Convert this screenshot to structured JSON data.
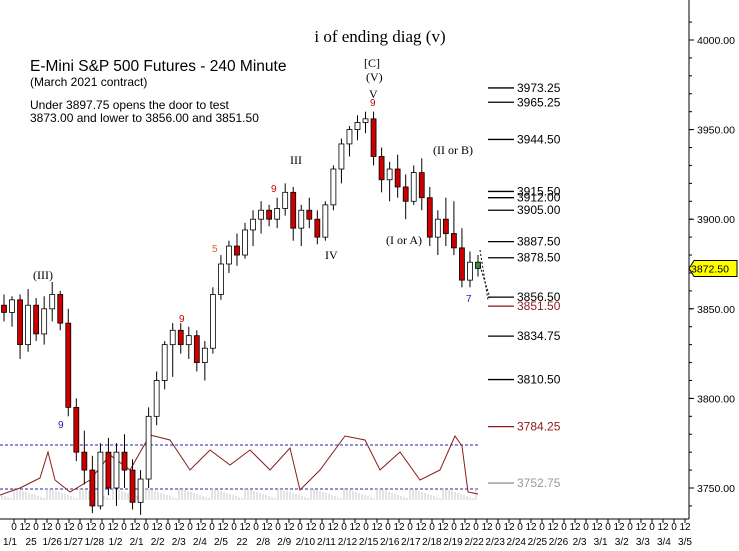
{
  "chart_data": {
    "type": "candlestick",
    "title": "E-Mini S&P 500 Futures - 240 Minute",
    "subtitle": "(March 2021 contract)",
    "note_lines": [
      "Under 3897.75 opens the door to test",
      "3873.00 and lower to 3856.00 and 3851.50"
    ],
    "header_label": "i of ending diag (v)",
    "y_axis": {
      "ticks": [
        3750.0,
        3800.0,
        3850.0,
        3900.0,
        3950.0,
        4000.0
      ],
      "range": [
        3735,
        4020
      ],
      "last_price": "3872.50",
      "last_price_value": 3872.5
    },
    "x_axis": {
      "tick_labels": [
        "0",
        "12",
        "0",
        "12",
        "0",
        "12",
        "0",
        "12",
        "0",
        "12",
        "0",
        "12",
        "0",
        "12",
        "0",
        "12",
        "0",
        "12",
        "0",
        "12",
        "0",
        "12",
        "0",
        "12",
        "0",
        "12",
        "0",
        "12",
        "0",
        "12",
        "0",
        "12",
        "0",
        "12",
        "0",
        "12",
        "0",
        "12",
        "0",
        "12",
        "0",
        "12",
        "0",
        "12",
        "0",
        "12",
        "0",
        "12",
        "0",
        "12",
        "0",
        "12",
        "0",
        "12",
        "0",
        "12",
        "0",
        "12",
        "0",
        "12",
        "0",
        "12"
      ],
      "date_labels": [
        "1/1",
        "25",
        "1/26",
        "1/27",
        "1/28",
        "1/2",
        "2/1",
        "2/2",
        "2/3",
        "2/4",
        "2/5",
        "22",
        "2/8",
        "2/9",
        "2/10",
        "2/11",
        "2/12",
        "2/15",
        "2/16",
        "2/17",
        "2/18",
        "2/19",
        "2/22",
        "2/23",
        "2/24",
        "2/25",
        "2/26",
        "2/3",
        "3/1",
        "3/2",
        "3/3",
        "3/4",
        "3/5"
      ]
    },
    "target_levels": [
      {
        "label": "3973.25",
        "value": 3973.25,
        "color": "#000000"
      },
      {
        "label": "3965.25",
        "value": 3965.25,
        "color": "#000000"
      },
      {
        "label": "3944.50",
        "value": 3944.5,
        "color": "#000000"
      },
      {
        "label": "3915.50",
        "value": 3915.5,
        "color": "#000000"
      },
      {
        "label": "3912.00",
        "value": 3912.0,
        "color": "#000000"
      },
      {
        "label": "3905.00",
        "value": 3905.0,
        "color": "#000000"
      },
      {
        "label": "3887.50",
        "value": 3887.5,
        "color": "#000000"
      },
      {
        "label": "3878.50",
        "value": 3878.5,
        "color": "#000000"
      },
      {
        "label": "3856.50",
        "value": 3856.5,
        "color": "#000000"
      },
      {
        "label": "3851.50",
        "value": 3851.5,
        "color": "#8b1a1a"
      },
      {
        "label": "3834.75",
        "value": 3834.75,
        "color": "#000000"
      },
      {
        "label": "3810.50",
        "value": 3810.5,
        "color": "#000000"
      },
      {
        "label": "3784.25",
        "value": 3784.25,
        "color": "#8b1a1a"
      },
      {
        "label": "3752.75",
        "value": 3752.75,
        "color": "#999999"
      }
    ],
    "wave_labels": [
      "(III)",
      "III",
      "IV",
      "[C]",
      "(V)",
      "V",
      "(II or B)",
      "(I or A)"
    ],
    "sequential_counts": [
      {
        "label": "9",
        "color": "#cc0000"
      },
      {
        "label": "9",
        "color": "#cc0000"
      },
      {
        "label": "5",
        "color": "#d2691e"
      },
      {
        "label": "9",
        "color": "#cc0000"
      },
      {
        "label": "9",
        "color": "#2222aa"
      },
      {
        "label": "7",
        "color": "#2222aa"
      }
    ],
    "ohlc_approx": [
      [
        3852,
        3858,
        3843,
        3848
      ],
      [
        3848,
        3857,
        3840,
        3855
      ],
      [
        3855,
        3858,
        3822,
        3830
      ],
      [
        3830,
        3861,
        3826,
        3852
      ],
      [
        3852,
        3856,
        3832,
        3836
      ],
      [
        3836,
        3857,
        3830,
        3850
      ],
      [
        3850,
        3865,
        3843,
        3858
      ],
      [
        3858,
        3860,
        3838,
        3842
      ],
      [
        3842,
        3850,
        3790,
        3795
      ],
      [
        3795,
        3800,
        3765,
        3770
      ],
      [
        3770,
        3782,
        3752,
        3760
      ],
      [
        3760,
        3768,
        3736,
        3740
      ],
      [
        3740,
        3775,
        3738,
        3770
      ],
      [
        3770,
        3778,
        3746,
        3750
      ],
      [
        3750,
        3775,
        3740,
        3770
      ],
      [
        3770,
        3780,
        3750,
        3760
      ],
      [
        3760,
        3766,
        3738,
        3742
      ],
      [
        3742,
        3760,
        3735,
        3755
      ],
      [
        3755,
        3795,
        3750,
        3790
      ],
      [
        3790,
        3815,
        3785,
        3810
      ],
      [
        3810,
        3832,
        3805,
        3830
      ],
      [
        3830,
        3842,
        3812,
        3838
      ],
      [
        3838,
        3842,
        3825,
        3830
      ],
      [
        3830,
        3840,
        3822,
        3835
      ],
      [
        3835,
        3838,
        3815,
        3820
      ],
      [
        3820,
        3832,
        3810,
        3828
      ],
      [
        3828,
        3862,
        3825,
        3858
      ],
      [
        3858,
        3880,
        3855,
        3875
      ],
      [
        3875,
        3888,
        3870,
        3885
      ],
      [
        3885,
        3892,
        3874,
        3880
      ],
      [
        3880,
        3898,
        3878,
        3894
      ],
      [
        3894,
        3905,
        3885,
        3900
      ],
      [
        3900,
        3910,
        3892,
        3905
      ],
      [
        3905,
        3908,
        3896,
        3900
      ],
      [
        3900,
        3912,
        3895,
        3906
      ],
      [
        3906,
        3920,
        3902,
        3915
      ],
      [
        3915,
        3918,
        3888,
        3895
      ],
      [
        3895,
        3908,
        3885,
        3905
      ],
      [
        3905,
        3912,
        3895,
        3900
      ],
      [
        3900,
        3905,
        3886,
        3890
      ],
      [
        3890,
        3910,
        3888,
        3908
      ],
      [
        3908,
        3930,
        3905,
        3928
      ],
      [
        3928,
        3945,
        3920,
        3942
      ],
      [
        3942,
        3952,
        3935,
        3950
      ],
      [
        3950,
        3958,
        3944,
        3954
      ],
      [
        3954,
        3960,
        3948,
        3956
      ],
      [
        3956,
        3960,
        3930,
        3935
      ],
      [
        3935,
        3940,
        3915,
        3922
      ],
      [
        3922,
        3932,
        3910,
        3928
      ],
      [
        3928,
        3936,
        3912,
        3918
      ],
      [
        3918,
        3925,
        3900,
        3910
      ],
      [
        3910,
        3930,
        3908,
        3926
      ],
      [
        3926,
        3934,
        3905,
        3912
      ],
      [
        3912,
        3918,
        3885,
        3890
      ],
      [
        3890,
        3905,
        3880,
        3900
      ],
      [
        3900,
        3912,
        3885,
        3892
      ],
      [
        3892,
        3910,
        3880,
        3884
      ],
      [
        3884,
        3895,
        3862,
        3866
      ],
      [
        3866,
        3882,
        3862,
        3876
      ],
      [
        3876,
        3880,
        3868,
        3872.5
      ]
    ]
  }
}
